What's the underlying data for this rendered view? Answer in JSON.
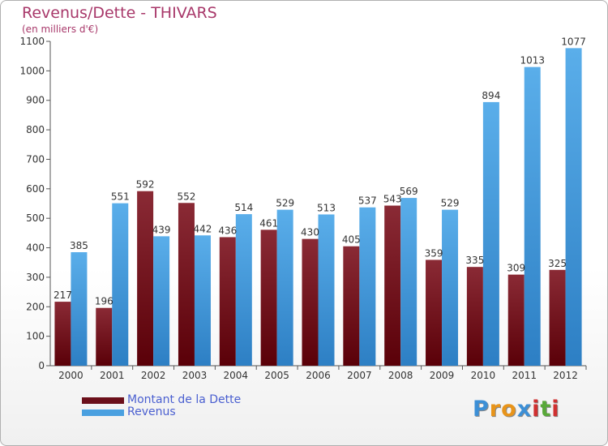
{
  "chart_data": {
    "type": "bar",
    "title": "Revenus/Dette - THIVARS",
    "subtitle": "(en milliers d'€)",
    "categories": [
      "2000",
      "2001",
      "2002",
      "2003",
      "2004",
      "2005",
      "2006",
      "2007",
      "2008",
      "2009",
      "2010",
      "2011",
      "2012"
    ],
    "series": [
      {
        "name": "Montant de la Dette",
        "color": "#7a1020",
        "values": [
          217,
          196,
          592,
          552,
          436,
          461,
          430,
          405,
          543,
          359,
          335,
          309,
          325
        ]
      },
      {
        "name": "Revenus",
        "color": "#4aa0e0",
        "values": [
          385,
          551,
          439,
          442,
          514,
          529,
          513,
          537,
          569,
          529,
          894,
          1013,
          1077
        ]
      }
    ],
    "ylim": [
      0,
      1100
    ],
    "yticks": [
      0,
      100,
      200,
      300,
      400,
      500,
      600,
      700,
      800,
      900,
      1000,
      1100
    ],
    "grid": false,
    "legend_position": "bottom-left"
  },
  "legend": {
    "items": [
      {
        "label": "Montant de la Dette",
        "color": "#6b0f1a"
      },
      {
        "label": "Revenus",
        "color": "#4aa0e0"
      }
    ]
  },
  "brand": {
    "letters": [
      "P",
      "r",
      "o",
      "x",
      "i",
      "t",
      "i"
    ],
    "colors": [
      "#3c8fd6",
      "#e8941a",
      "#e8941a",
      "#3c8fd6",
      "#d03030",
      "#58a838",
      "#d03030"
    ]
  }
}
